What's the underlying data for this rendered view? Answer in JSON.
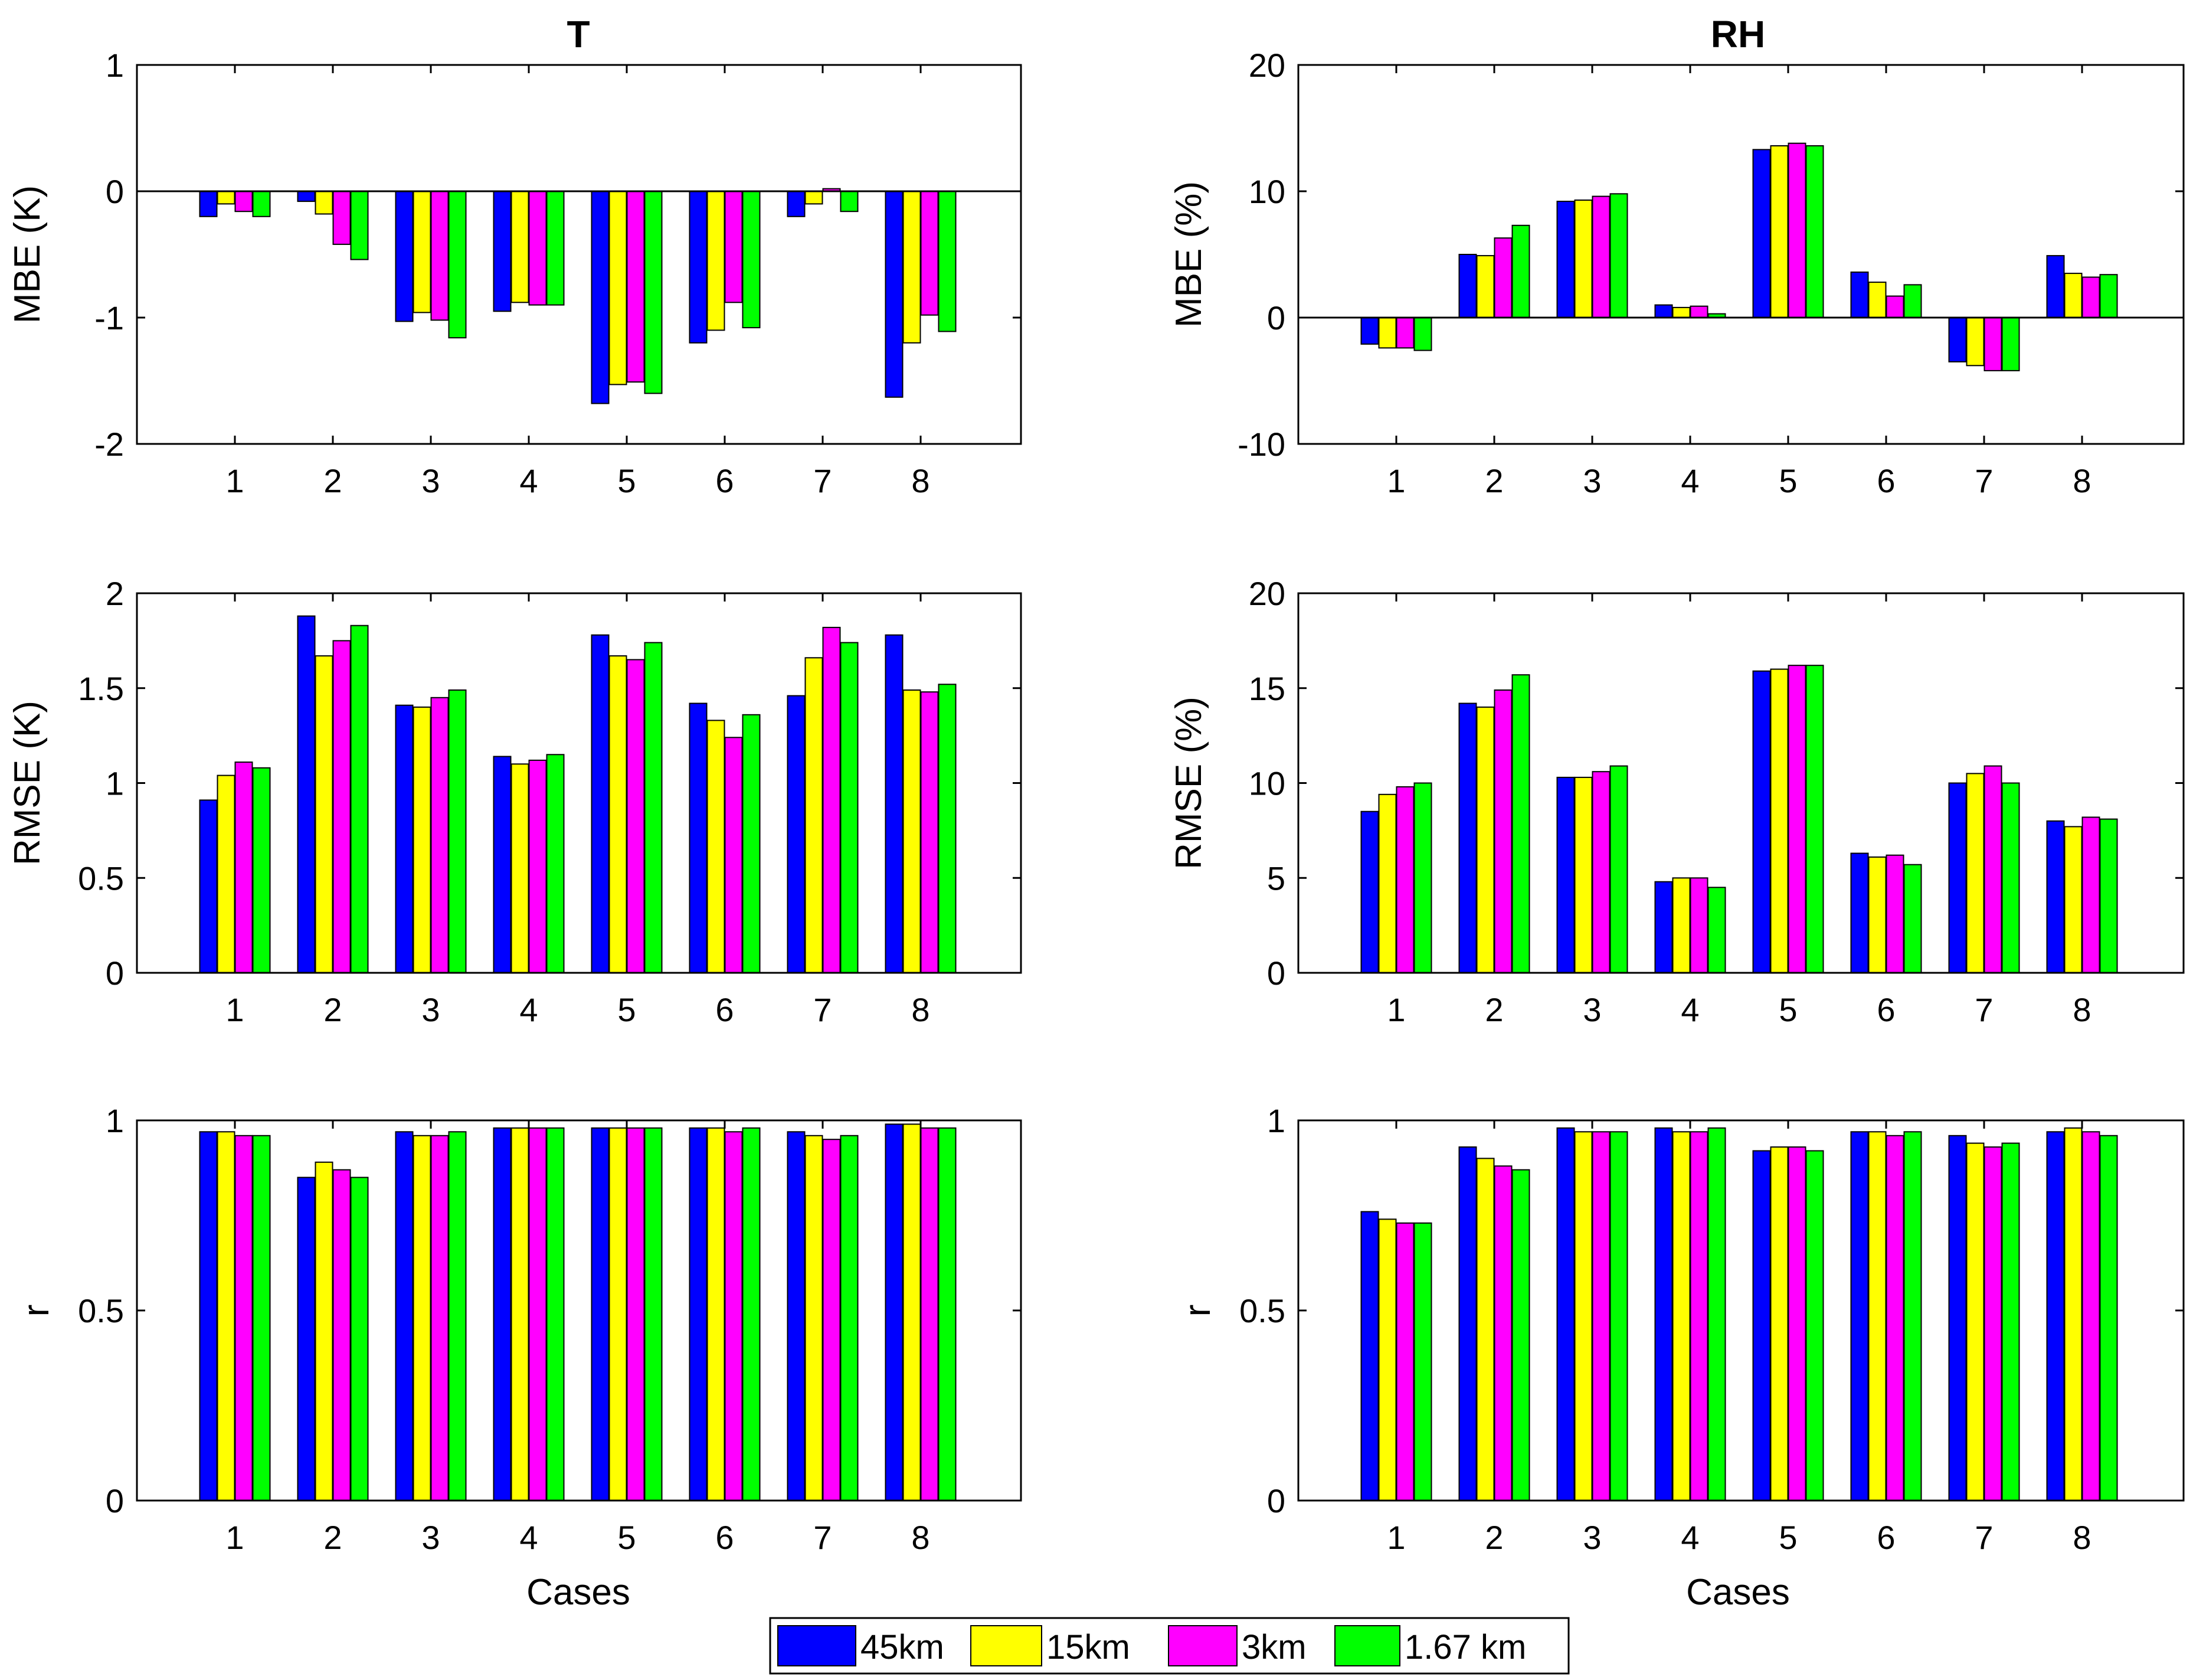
{
  "chart_data": {
    "type": "bar",
    "categories": [
      "1",
      "2",
      "3",
      "4",
      "5",
      "6",
      "7",
      "8"
    ],
    "legend": {
      "placement": "bottom-center",
      "entries": [
        {
          "label": "45km",
          "color": "#0000ff"
        },
        {
          "label": "15km",
          "color": "#ffff00"
        },
        {
          "label": "3km",
          "color": "#ff00ff"
        },
        {
          "label": "1.67 km",
          "color": "#00ff00"
        }
      ]
    },
    "columns": [
      {
        "title": "T",
        "xlabel": "Cases"
      },
      {
        "title": "RH",
        "xlabel": "Cases"
      }
    ],
    "panels": [
      {
        "id": "T-MBE",
        "column": 0,
        "row": 0,
        "ylabel": "MBE (K)",
        "ylim": [
          -2,
          1
        ],
        "yticks": [
          -2,
          -1,
          0,
          1
        ],
        "ytick_labels": [
          "-2",
          "-1",
          "0",
          "1"
        ],
        "zero_line": true,
        "series": [
          {
            "name": "45km",
            "values": [
              -0.2,
              -0.08,
              -1.03,
              -0.95,
              -1.68,
              -1.2,
              -0.2,
              -1.63
            ]
          },
          {
            "name": "15km",
            "values": [
              -0.1,
              -0.18,
              -0.96,
              -0.88,
              -1.53,
              -1.1,
              -0.1,
              -1.2
            ]
          },
          {
            "name": "3km",
            "values": [
              -0.16,
              -0.42,
              -1.02,
              -0.9,
              -1.51,
              -0.88,
              0.02,
              -0.98
            ]
          },
          {
            "name": "1.67 km",
            "values": [
              -0.2,
              -0.54,
              -1.16,
              -0.9,
              -1.6,
              -1.08,
              -0.16,
              -1.11
            ]
          }
        ]
      },
      {
        "id": "RH-MBE",
        "column": 1,
        "row": 0,
        "ylabel": "MBE (%)",
        "ylim": [
          -10,
          20
        ],
        "yticks": [
          -10,
          0,
          10,
          20
        ],
        "ytick_labels": [
          "-10",
          "0",
          "10",
          "20"
        ],
        "zero_line": true,
        "series": [
          {
            "name": "45km",
            "values": [
              -2.1,
              5.0,
              9.2,
              1.0,
              13.3,
              3.6,
              -3.5,
              4.9
            ]
          },
          {
            "name": "15km",
            "values": [
              -2.4,
              4.9,
              9.3,
              0.8,
              13.6,
              2.8,
              -3.8,
              3.5
            ]
          },
          {
            "name": "3km",
            "values": [
              -2.4,
              6.3,
              9.6,
              0.9,
              13.8,
              1.7,
              -4.2,
              3.2
            ]
          },
          {
            "name": "1.67 km",
            "values": [
              -2.6,
              7.3,
              9.8,
              0.3,
              13.6,
              2.6,
              -4.2,
              3.4
            ]
          }
        ]
      },
      {
        "id": "T-RMSE",
        "column": 0,
        "row": 1,
        "ylabel": "RMSE (K)",
        "ylim": [
          0,
          2
        ],
        "yticks": [
          0,
          0.5,
          1,
          1.5,
          2
        ],
        "ytick_labels": [
          "0",
          "0.5",
          "1",
          "1.5",
          "2"
        ],
        "zero_line": false,
        "series": [
          {
            "name": "45km",
            "values": [
              0.91,
              1.88,
              1.41,
              1.14,
              1.78,
              1.42,
              1.46,
              1.78
            ]
          },
          {
            "name": "15km",
            "values": [
              1.04,
              1.67,
              1.4,
              1.1,
              1.67,
              1.33,
              1.66,
              1.49
            ]
          },
          {
            "name": "3km",
            "values": [
              1.11,
              1.75,
              1.45,
              1.12,
              1.65,
              1.24,
              1.82,
              1.48
            ]
          },
          {
            "name": "1.67 km",
            "values": [
              1.08,
              1.83,
              1.49,
              1.15,
              1.74,
              1.36,
              1.74,
              1.52
            ]
          }
        ]
      },
      {
        "id": "RH-RMSE",
        "column": 1,
        "row": 1,
        "ylabel": "RMSE (%)",
        "ylim": [
          0,
          20
        ],
        "yticks": [
          0,
          5,
          10,
          15,
          20
        ],
        "ytick_labels": [
          "0",
          "5",
          "10",
          "15",
          "20"
        ],
        "zero_line": false,
        "series": [
          {
            "name": "45km",
            "values": [
              8.5,
              14.2,
              10.3,
              4.8,
              15.9,
              6.3,
              10.0,
              8.0
            ]
          },
          {
            "name": "15km",
            "values": [
              9.4,
              14.0,
              10.3,
              5.0,
              16.0,
              6.1,
              10.5,
              7.7
            ]
          },
          {
            "name": "3km",
            "values": [
              9.8,
              14.9,
              10.6,
              5.0,
              16.2,
              6.2,
              10.9,
              8.2
            ]
          },
          {
            "name": "1.67 km",
            "values": [
              10.0,
              15.7,
              10.9,
              4.5,
              16.2,
              5.7,
              10.0,
              8.1
            ]
          }
        ]
      },
      {
        "id": "T-r",
        "column": 0,
        "row": 2,
        "ylabel": "r",
        "ylim": [
          0,
          1
        ],
        "yticks": [
          0,
          0.5,
          1
        ],
        "ytick_labels": [
          "0",
          "0.5",
          "1"
        ],
        "zero_line": false,
        "series": [
          {
            "name": "45km",
            "values": [
              0.97,
              0.85,
              0.97,
              0.98,
              0.98,
              0.98,
              0.97,
              0.99
            ]
          },
          {
            "name": "15km",
            "values": [
              0.97,
              0.89,
              0.96,
              0.98,
              0.98,
              0.98,
              0.96,
              0.99
            ]
          },
          {
            "name": "3km",
            "values": [
              0.96,
              0.87,
              0.96,
              0.98,
              0.98,
              0.97,
              0.95,
              0.98
            ]
          },
          {
            "name": "1.67 km",
            "values": [
              0.96,
              0.85,
              0.97,
              0.98,
              0.98,
              0.98,
              0.96,
              0.98
            ]
          }
        ]
      },
      {
        "id": "RH-r",
        "column": 1,
        "row": 2,
        "ylabel": "r",
        "ylim": [
          0,
          1
        ],
        "yticks": [
          0,
          0.5,
          1
        ],
        "ytick_labels": [
          "0",
          "0.5",
          "1"
        ],
        "zero_line": false,
        "series": [
          {
            "name": "45km",
            "values": [
              0.76,
              0.93,
              0.98,
              0.98,
              0.92,
              0.97,
              0.96,
              0.97
            ]
          },
          {
            "name": "15km",
            "values": [
              0.74,
              0.9,
              0.97,
              0.97,
              0.93,
              0.97,
              0.94,
              0.98
            ]
          },
          {
            "name": "3km",
            "values": [
              0.73,
              0.88,
              0.97,
              0.97,
              0.93,
              0.96,
              0.93,
              0.97
            ]
          },
          {
            "name": "1.67 km",
            "values": [
              0.73,
              0.87,
              0.97,
              0.98,
              0.92,
              0.97,
              0.94,
              0.96
            ]
          }
        ]
      }
    ]
  }
}
